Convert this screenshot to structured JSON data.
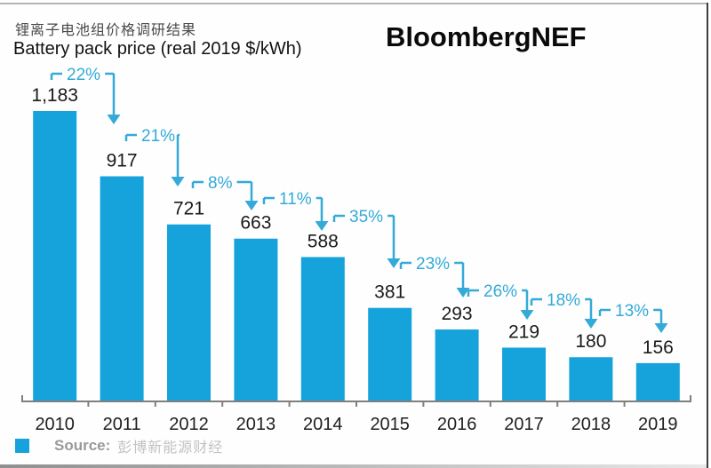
{
  "header": {
    "title_cn": "锂离子电池组价格调研结果",
    "title_en": "Battery pack price (real 2019 $/kWh)",
    "brand": "BloombergNEF"
  },
  "chart_data": {
    "type": "bar",
    "title": "Battery pack price (real 2019 $/kWh)",
    "categories": [
      "2010",
      "2011",
      "2012",
      "2013",
      "2014",
      "2015",
      "2016",
      "2017",
      "2018",
      "2019"
    ],
    "values": [
      1183,
      917,
      721,
      663,
      588,
      381,
      293,
      219,
      180,
      156
    ],
    "value_labels": [
      "1,183",
      "917",
      "721",
      "663",
      "588",
      "381",
      "293",
      "219",
      "180",
      "156"
    ],
    "annotations": [
      {
        "from": "2010",
        "to": "2011",
        "label": "22%"
      },
      {
        "from": "2011",
        "to": "2012",
        "label": "21%"
      },
      {
        "from": "2012",
        "to": "2013",
        "label": "8%"
      },
      {
        "from": "2013",
        "to": "2014",
        "label": "11%"
      },
      {
        "from": "2014",
        "to": "2015",
        "label": "35%"
      },
      {
        "from": "2015",
        "to": "2016",
        "label": "23%"
      },
      {
        "from": "2016",
        "to": "2017",
        "label": "26%"
      },
      {
        "from": "2017",
        "to": "2018",
        "label": "18%"
      },
      {
        "from": "2018",
        "to": "2019",
        "label": "13%"
      }
    ],
    "xlabel": "",
    "ylabel": "",
    "ylim": [
      0,
      1200
    ],
    "grid": false,
    "legend_position": "none",
    "bar_color": "#16a3db",
    "annotation_color": "#33aad8",
    "axis_color": "#7f7f7f",
    "text_color": "#1a1a1a"
  },
  "footer": {
    "legend_swatch_color": "#16a3db",
    "source_label": "Source:",
    "source_value": "彭博新能源财经"
  }
}
